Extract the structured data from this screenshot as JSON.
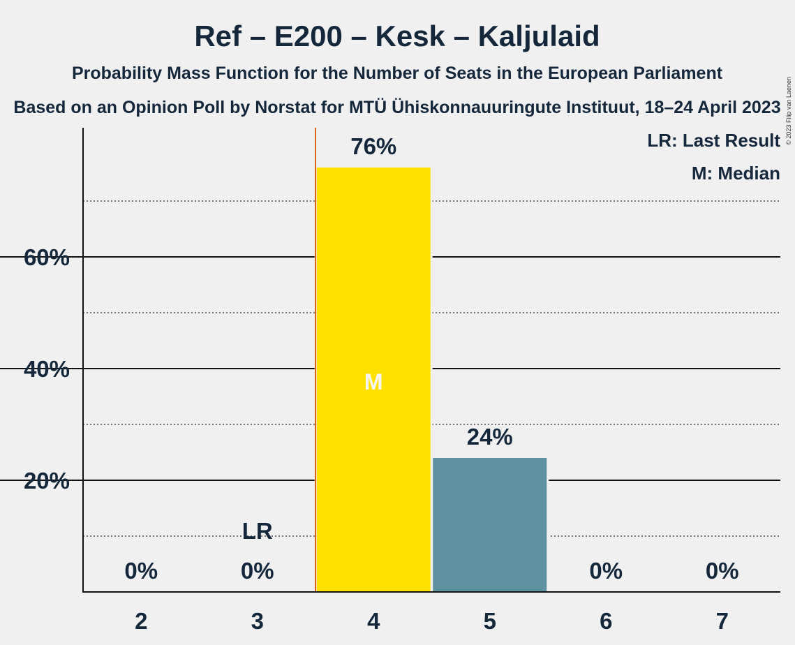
{
  "title": "Ref – E200 – Kesk – Kaljulaid",
  "subtitle": "Probability Mass Function for the Number of Seats in the European Parliament",
  "source": "Based on an Opinion Poll by Norstat for MTÜ Ühiskonnauuringute Instituut, 18–24 April 2023",
  "copyright": "© 2023 Filip van Laenen",
  "legend": {
    "last_result": "LR: Last Result",
    "median": "M: Median"
  },
  "markers": {
    "last_result_label": "LR",
    "median_label": "M"
  },
  "colors": {
    "median_bar": "#FFE100",
    "other_bar": "#5E91A0",
    "last_result_line": "#E06010",
    "background": "#f0f0f0",
    "text": "#15273b"
  },
  "chart_data": {
    "type": "bar",
    "categories": [
      "2",
      "3",
      "4",
      "5",
      "6",
      "7"
    ],
    "values": [
      0,
      0,
      76,
      24,
      0,
      0
    ],
    "value_labels": [
      "0%",
      "0%",
      "76%",
      "24%",
      "0%",
      "0%"
    ],
    "y_ticks": [
      "20%",
      "40%",
      "60%"
    ],
    "y_tick_values": [
      20,
      40,
      60
    ],
    "minor_gridlines": [
      10,
      30,
      50,
      70
    ],
    "ylim": [
      0,
      83
    ],
    "last_result_seats": "3",
    "median_seats": "4",
    "grid": true,
    "legend_position": "top-right"
  }
}
